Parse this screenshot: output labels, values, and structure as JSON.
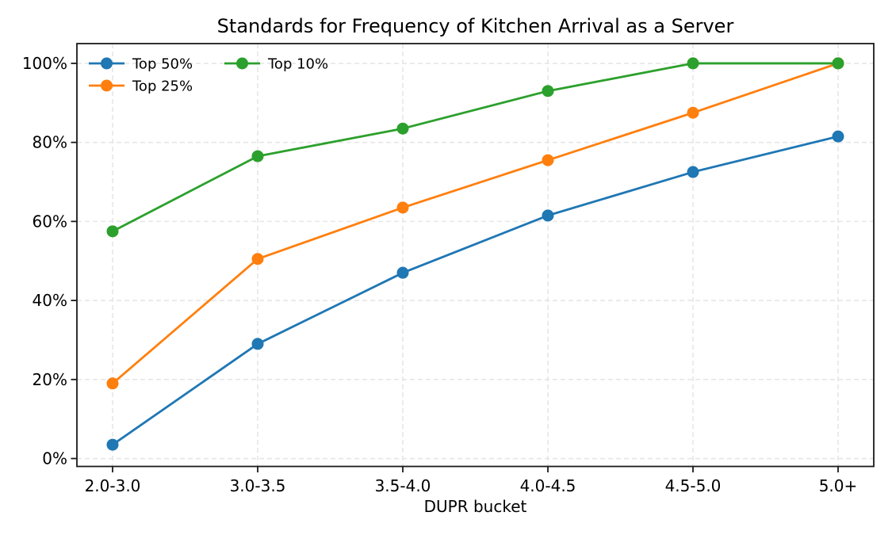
{
  "chart_data": {
    "type": "line",
    "title": "Standards for Frequency of Kitchen Arrival as a Server",
    "xlabel": "DUPR bucket",
    "ylabel": "",
    "categories": [
      "2.0-3.0",
      "3.0-3.5",
      "3.5-4.0",
      "4.0-4.5",
      "4.5-5.0",
      "5.0+"
    ],
    "series": [
      {
        "name": "Top 50%",
        "color": "#1f77b4",
        "values": [
          3.5,
          29.0,
          47.0,
          61.5,
          72.5,
          81.5
        ]
      },
      {
        "name": "Top 25%",
        "color": "#ff7f0e",
        "values": [
          19.0,
          50.5,
          63.5,
          75.5,
          87.5,
          100.0
        ]
      },
      {
        "name": "Top 10%",
        "color": "#2ca02c",
        "values": [
          57.5,
          76.5,
          83.5,
          93.0,
          100.0,
          100.0
        ]
      }
    ],
    "yticks": [
      0,
      20,
      40,
      60,
      80,
      100
    ],
    "ytick_labels": [
      "0%",
      "20%",
      "40%",
      "60%",
      "80%",
      "100%"
    ],
    "ylim": [
      -2,
      105
    ],
    "grid": true,
    "grid_style": "dashed",
    "legend_position": "upper-left",
    "legend_columns": 2,
    "legend_frame": false
  },
  "colors": {
    "background": "#ffffff",
    "grid": "#e6e6e6",
    "spine": "#1a1a1a",
    "text": "#000000"
  }
}
